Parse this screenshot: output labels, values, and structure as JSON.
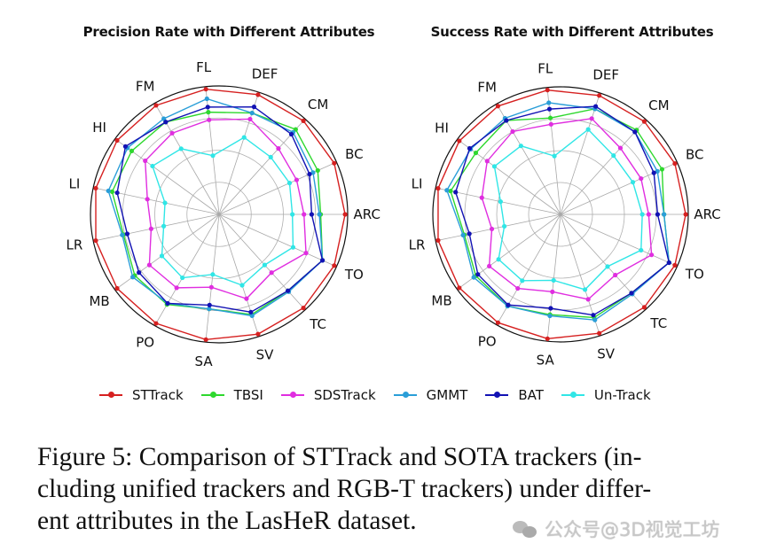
{
  "chart_data": [
    {
      "type": "radar",
      "title": "Precision Rate with Different Attributes",
      "categories": [
        "FL",
        "DEF",
        "CM",
        "BC",
        "ARC",
        "TO",
        "TC",
        "SV",
        "SA",
        "PO",
        "MB",
        "LR",
        "LI",
        "HI",
        "FM"
      ],
      "rlim": [
        0,
        1
      ],
      "grid": true,
      "legend_position": "bottom",
      "series": [
        {
          "name": "STTrack",
          "color": "#d62020",
          "values": [
            0.98,
            0.98,
            0.98,
            0.98,
            0.98,
            0.98,
            0.98,
            0.98,
            0.98,
            0.98,
            0.98,
            0.98,
            0.98,
            0.98,
            0.98
          ]
        },
        {
          "name": "TBSI",
          "color": "#2ed82e",
          "values": [
            0.8,
            0.83,
            0.89,
            0.84,
            0.79,
            0.88,
            0.8,
            0.82,
            0.74,
            0.81,
            0.81,
            0.76,
            0.85,
            0.84,
            0.83
          ]
        },
        {
          "name": "SDSTrack",
          "color": "#e02ee0",
          "values": [
            0.74,
            0.78,
            0.69,
            0.66,
            0.66,
            0.74,
            0.61,
            0.69,
            0.57,
            0.66,
            0.67,
            0.54,
            0.57,
            0.71,
            0.73
          ]
        },
        {
          "name": "GMMT",
          "color": "#2a9ed8",
          "values": [
            0.905,
            0.83,
            0.86,
            0.8,
            0.78,
            0.88,
            0.81,
            0.83,
            0.74,
            0.8,
            0.83,
            0.77,
            0.88,
            0.88,
            0.86
          ]
        },
        {
          "name": "BAT",
          "color": "#1212b4",
          "values": [
            0.84,
            0.88,
            0.84,
            0.77,
            0.72,
            0.88,
            0.8,
            0.8,
            0.71,
            0.8,
            0.77,
            0.73,
            0.81,
            0.9,
            0.83
          ]
        },
        {
          "name": "Un-Track",
          "color": "#30e6e6",
          "values": [
            0.46,
            0.63,
            0.6,
            0.6,
            0.57,
            0.63,
            0.53,
            0.58,
            0.47,
            0.57,
            0.55,
            0.44,
            0.43,
            0.64,
            0.59
          ]
        }
      ]
    },
    {
      "type": "radar",
      "title": "Success Rate with Different Attributes",
      "categories": [
        "FL",
        "DEF",
        "CM",
        "BC",
        "ARC",
        "TO",
        "TC",
        "SV",
        "SA",
        "PO",
        "MB",
        "LR",
        "LI",
        "HI",
        "FM"
      ],
      "rlim": [
        0,
        1
      ],
      "grid": true,
      "legend_position": "bottom",
      "series": [
        {
          "name": "STTrack",
          "color": "#d62020",
          "values": [
            0.98,
            0.98,
            0.98,
            0.98,
            0.98,
            0.98,
            0.98,
            0.98,
            0.98,
            0.98,
            0.98,
            0.98,
            0.98,
            0.98,
            0.98
          ]
        },
        {
          "name": "TBSI",
          "color": "#2ed82e",
          "values": [
            0.76,
            0.87,
            0.89,
            0.87,
            0.81,
            0.93,
            0.83,
            0.85,
            0.79,
            0.83,
            0.82,
            0.77,
            0.88,
            0.82,
            0.85
          ]
        },
        {
          "name": "SDSTrack",
          "color": "#e02ee0",
          "values": [
            0.71,
            0.79,
            0.7,
            0.69,
            0.69,
            0.78,
            0.64,
            0.7,
            0.61,
            0.67,
            0.69,
            0.55,
            0.63,
            0.71,
            0.75
          ]
        },
        {
          "name": "GMMT",
          "color": "#2a9ed8",
          "values": [
            0.88,
            0.87,
            0.87,
            0.83,
            0.81,
            0.93,
            0.84,
            0.87,
            0.8,
            0.83,
            0.84,
            0.78,
            0.91,
            0.87,
            0.87
          ]
        },
        {
          "name": "BAT",
          "color": "#1212b4",
          "values": [
            0.83,
            0.89,
            0.87,
            0.8,
            0.76,
            0.93,
            0.83,
            0.83,
            0.74,
            0.82,
            0.8,
            0.73,
            0.84,
            0.88,
            0.85
          ]
        },
        {
          "name": "Un-Track",
          "color": "#30e6e6",
          "values": [
            0.46,
            0.7,
            0.62,
            0.62,
            0.64,
            0.69,
            0.55,
            0.62,
            0.52,
            0.6,
            0.6,
            0.45,
            0.48,
            0.64,
            0.62
          ]
        }
      ]
    }
  ],
  "legend": [
    "STTrack",
    "TBSI",
    "SDSTrack",
    "GMMT",
    "BAT",
    "Un-Track"
  ],
  "caption": {
    "lines": [
      "Figure 5: Comparison of STTrack and SOTA trackers (in-",
      "cluding unified trackers and RGB-T trackers) under differ-",
      "ent attributes in the LasHeR dataset."
    ]
  },
  "watermark": "公众号@3D视觉工坊"
}
